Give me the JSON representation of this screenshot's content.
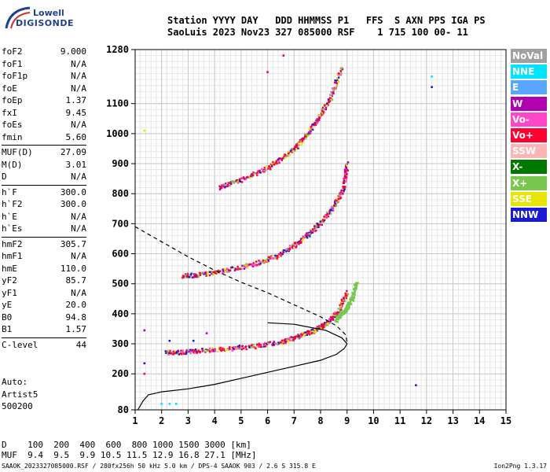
{
  "logo": {
    "line1": "Lowell",
    "line2": "DIGISONDE"
  },
  "header": {
    "line1": "Station YYYY DAY   DDD HHMMSS P1   FFS  S AXN PPS IGA PS",
    "line2": "SaoLuis 2023 Nov23 327 085000 RSF    1 715 100 00- 11"
  },
  "params": {
    "group1": [
      {
        "label": "foF2",
        "value": "9.000"
      },
      {
        "label": "foF1",
        "value": "N/A"
      },
      {
        "label": "foF1p",
        "value": "N/A"
      },
      {
        "label": "foE",
        "value": "N/A"
      },
      {
        "label": "foEp",
        "value": "1.37"
      },
      {
        "label": "fxI",
        "value": "9.45"
      },
      {
        "label": "foEs",
        "value": "N/A"
      },
      {
        "label": "fmin",
        "value": "5.60"
      }
    ],
    "group2": [
      {
        "label": "MUF(D)",
        "value": "27.09"
      },
      {
        "label": "M(D)",
        "value": "3.01"
      },
      {
        "label": "D",
        "value": "N/A"
      }
    ],
    "group3": [
      {
        "label": "h`F",
        "value": "300.0"
      },
      {
        "label": "h`F2",
        "value": "300.0"
      },
      {
        "label": "h`E",
        "value": "N/A"
      },
      {
        "label": "h`Es",
        "value": "N/A"
      }
    ],
    "group4": [
      {
        "label": "hmF2",
        "value": "305.7"
      },
      {
        "label": "hmF1",
        "value": "N/A"
      },
      {
        "label": "hmE",
        "value": "110.0"
      },
      {
        "label": "yF2",
        "value": "85.7"
      },
      {
        "label": "yF1",
        "value": "N/A"
      },
      {
        "label": "yE",
        "value": "20.0"
      },
      {
        "label": "B0",
        "value": "94.8"
      },
      {
        "label": "B1",
        "value": "1.57"
      }
    ],
    "group5": [
      {
        "label": "C-level",
        "value": "44"
      }
    ]
  },
  "auto": {
    "line1": "Auto:",
    "line2": "Artist5",
    "line3": "500200"
  },
  "legend": [
    {
      "label": "NoVal",
      "color": "#a0a0a0"
    },
    {
      "label": "NNE",
      "color": "#00e5ff"
    },
    {
      "label": "E",
      "color": "#5aa6ff"
    },
    {
      "label": "W",
      "color": "#b000b0"
    },
    {
      "label": "Vo-",
      "color": "#ff46c8"
    },
    {
      "label": "Vo+",
      "color": "#ff0030"
    },
    {
      "label": "SSW",
      "color": "#ffb4b4"
    },
    {
      "label": "X-",
      "color": "#007800"
    },
    {
      "label": "X+",
      "color": "#78c850"
    },
    {
      "label": "SSE",
      "color": "#e6e600"
    },
    {
      "label": "NNW",
      "color": "#1a1ad2"
    }
  ],
  "muf_table": {
    "line1": "D    100  200  400  600  800 1000 1500 3000 [km]",
    "line2": "MUF  9.4  9.5  9.9 10.5 11.5 12.9 16.8 27.1 [MHz]"
  },
  "footer": "SAAOK_2023327085000.RSF / 280fx256h 50 kHz 5.0 km / DPS-4 SAAOK 903 / 2.6 S 315.8 E",
  "version": "Ion2Png 1.3.17",
  "chart_data": {
    "type": "scatter",
    "xlim": [
      1,
      15
    ],
    "ylim": [
      80,
      1280
    ],
    "xticks": [
      1,
      2,
      3,
      4,
      5,
      6,
      7,
      8,
      9,
      10,
      11,
      12,
      13,
      14,
      15
    ],
    "yticks": [
      80,
      200,
      300,
      400,
      500,
      600,
      700,
      800,
      900,
      1000,
      1100,
      1280
    ],
    "grid": true,
    "legend_position": "right",
    "series": [
      {
        "name": "Vo+",
        "color": "#ff0030",
        "style": "points",
        "traces": [
          {
            "x": [
              2.2,
              2.8,
              3.5,
              4.5,
              5.5,
              6.5,
              7.2,
              7.8,
              8.3,
              8.7,
              9.0
            ],
            "y": [
              270,
              272,
              277,
              283,
              292,
              305,
              325,
              345,
              370,
              410,
              470
            ]
          },
          {
            "x": [
              2.8,
              3.5,
              4.5,
              5.5,
              6.3,
              7.0,
              7.5,
              8.0,
              8.5,
              8.9,
              9.0
            ],
            "y": [
              525,
              530,
              545,
              565,
              590,
              625,
              660,
              700,
              755,
              820,
              900
            ]
          },
          {
            "x": [
              4.2,
              5.0,
              6.0,
              6.7,
              7.2,
              7.6,
              8.0,
              8.4,
              8.8
            ],
            "y": [
              820,
              845,
              885,
              925,
              965,
              1010,
              1060,
              1120,
              1220
            ]
          }
        ]
      },
      {
        "name": "X+",
        "color": "#78c850",
        "style": "points",
        "traces": [
          {
            "x": [
              8.6,
              8.8,
              9.0,
              9.2,
              9.35
            ],
            "y": [
              380,
              400,
              420,
              450,
              500
            ]
          }
        ]
      },
      {
        "name": "O-trace model",
        "color": "#000000",
        "style": "solid",
        "x": [
          1.1,
          1.3,
          1.5,
          2.0,
          3.0,
          4.0,
          5.0,
          6.0,
          7.0,
          8.0,
          8.6,
          8.9,
          9.0,
          8.8,
          8.2,
          7.0,
          6.0
        ],
        "y": [
          80,
          110,
          130,
          140,
          150,
          165,
          185,
          205,
          225,
          245,
          265,
          285,
          300,
          320,
          345,
          365,
          370
        ]
      },
      {
        "name": "Profile",
        "color": "#000000",
        "style": "dashed",
        "x": [
          1.0,
          2.0,
          3.0,
          4.0,
          5.0,
          6.0,
          7.0,
          8.0,
          8.6,
          8.95,
          9.0
        ],
        "y": [
          690,
          640,
          590,
          545,
          505,
          470,
          430,
          390,
          360,
          330,
          305
        ]
      }
    ],
    "extra_points": [
      {
        "x": 12.2,
        "y": 1190,
        "color": "#00e5ff"
      },
      {
        "x": 12.2,
        "y": 1155,
        "color": "#1a1ad2"
      },
      {
        "x": 11.6,
        "y": 162,
        "color": "#1a1ad2"
      },
      {
        "x": 6.0,
        "y": 1205,
        "color": "#ff0030"
      },
      {
        "x": 6.6,
        "y": 1260,
        "color": "#ff0030"
      },
      {
        "x": 3.7,
        "y": 335,
        "color": "#b000b0"
      },
      {
        "x": 3.2,
        "y": 310,
        "color": "#1a1ad2"
      },
      {
        "x": 1.35,
        "y": 345,
        "color": "#b000b0"
      },
      {
        "x": 1.35,
        "y": 235,
        "color": "#1a1ad2"
      },
      {
        "x": 1.35,
        "y": 200,
        "color": "#ff0030"
      },
      {
        "x": 2.3,
        "y": 310,
        "color": "#1a1ad2"
      },
      {
        "x": 2.0,
        "y": 100,
        "color": "#00e5ff"
      },
      {
        "x": 2.3,
        "y": 100,
        "color": "#00e5ff"
      },
      {
        "x": 2.55,
        "y": 100,
        "color": "#00e5ff"
      },
      {
        "x": 1.35,
        "y": 1010,
        "color": "#e6e600"
      }
    ]
  }
}
